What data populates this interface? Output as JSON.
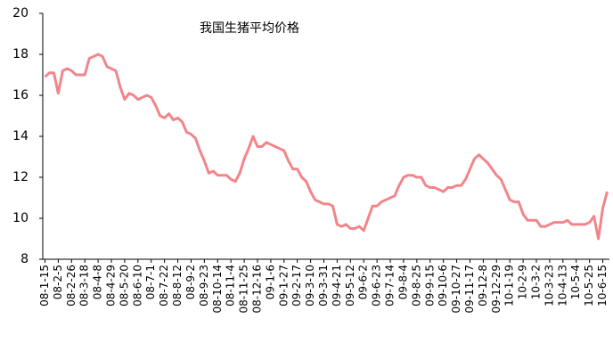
{
  "chart_data": {
    "type": "line",
    "title": "我国生猪平均价格",
    "categories": [
      "08-1-15",
      null,
      null,
      "08-2-5",
      null,
      null,
      "08-2-26",
      null,
      null,
      "08-3-18",
      null,
      null,
      "08-4-8",
      null,
      null,
      "08-4-29",
      null,
      null,
      "08-5-20",
      null,
      null,
      "08-6-10",
      null,
      null,
      "08-7-1",
      null,
      null,
      "08-7-22",
      null,
      null,
      "08-8-12",
      null,
      null,
      "08-9-2",
      null,
      null,
      "08-9-23",
      null,
      null,
      "08-10-14",
      null,
      null,
      "08-11-4",
      null,
      null,
      "08-11-25",
      null,
      null,
      "08-12-16",
      null,
      null,
      "09-1-6",
      null,
      null,
      "09-1-27",
      null,
      null,
      "09-2-17",
      null,
      null,
      "09-3-10",
      null,
      null,
      "09-3-31",
      null,
      null,
      "09-4-21",
      null,
      null,
      "09-5-12",
      null,
      null,
      "09-6-2",
      null,
      null,
      "09-6-23",
      null,
      null,
      "09-7-14",
      null,
      null,
      "09-8-4",
      null,
      null,
      "09-8-25",
      null,
      null,
      "09-9-15",
      null,
      null,
      "09-10-6",
      null,
      null,
      "09-10-27",
      null,
      null,
      "09-11-17",
      null,
      null,
      "09-12-8",
      null,
      null,
      "09-12-29",
      null,
      null,
      "10-1-19",
      null,
      null,
      "10-2-9",
      null,
      null,
      "10-3-2",
      null,
      null,
      "10-3-23",
      null,
      null,
      "10-4-13",
      null,
      null,
      "10-5-4",
      null,
      null,
      "10-5-25",
      null,
      null,
      "10-6-15",
      null
    ],
    "values": [
      16.9,
      17.1,
      17.1,
      16.1,
      17.2,
      17.3,
      17.2,
      17.0,
      17.0,
      17.0,
      17.8,
      17.9,
      18.0,
      17.9,
      17.4,
      17.3,
      17.2,
      16.4,
      15.8,
      16.1,
      16.0,
      15.8,
      15.9,
      16.0,
      15.9,
      15.5,
      15.0,
      14.9,
      15.1,
      14.8,
      14.9,
      14.7,
      14.2,
      14.1,
      13.9,
      13.3,
      12.8,
      12.2,
      12.3,
      12.1,
      12.1,
      12.1,
      11.9,
      11.8,
      12.2,
      12.9,
      13.4,
      14.0,
      13.5,
      13.5,
      13.7,
      13.6,
      13.5,
      13.4,
      13.3,
      12.8,
      12.4,
      12.4,
      12.0,
      11.8,
      11.3,
      10.9,
      10.8,
      10.7,
      10.7,
      10.6,
      9.7,
      9.6,
      9.7,
      9.5,
      9.5,
      9.6,
      9.4,
      10.0,
      10.6,
      10.6,
      10.8,
      10.9,
      11.0,
      11.1,
      11.6,
      12.0,
      12.1,
      12.1,
      12.0,
      12.0,
      11.6,
      11.5,
      11.5,
      11.4,
      11.3,
      11.5,
      11.5,
      11.6,
      11.6,
      11.9,
      12.4,
      12.9,
      13.1,
      12.9,
      12.7,
      12.4,
      12.1,
      11.9,
      11.4,
      10.9,
      10.8,
      10.8,
      10.2,
      9.9,
      9.9,
      9.9,
      9.6,
      9.6,
      9.7,
      9.8,
      9.8,
      9.8,
      9.9,
      9.7,
      9.7,
      9.7,
      9.7,
      9.8,
      10.1,
      9.0,
      10.5,
      11.3
    ],
    "color": "#f2858a",
    "ylim": [
      8,
      20
    ],
    "yticks": [
      8,
      10,
      12,
      14,
      16,
      18,
      20
    ],
    "grid": false
  }
}
